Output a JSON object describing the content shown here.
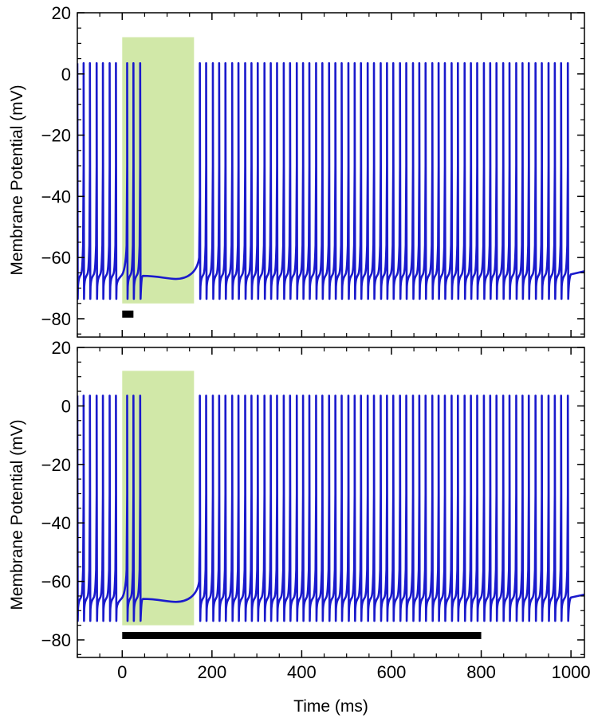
{
  "chart_data": {
    "type": "line",
    "xlabel": "Time (ms)",
    "ylabel": "Membrane Potential (mV)",
    "xlim": [
      -100,
      1030
    ],
    "ylim": [
      -86,
      20
    ],
    "x_ticks": [
      0,
      200,
      400,
      600,
      800,
      1000
    ],
    "y_ticks": [
      20,
      0,
      -20,
      -40,
      -60,
      -80
    ],
    "colors": {
      "trace": "#1a1acc",
      "shade": "#d1e8a8",
      "bar": "#000000"
    },
    "panels": [
      {
        "id": "top",
        "shaded_window": {
          "x": [
            0,
            160
          ],
          "y": [
            -75,
            12
          ]
        },
        "stimulus_bar": {
          "x": [
            0,
            25
          ],
          "y": -78.5
        },
        "spike_peak_mv": 3.5,
        "spike_trough_mv": -73.5,
        "resting_mv": -66,
        "silence_dip_mv": -67,
        "spike_times_ms": [
          -100,
          -86,
          -72,
          -57,
          -43,
          -28,
          -14,
          11,
          25,
          40,
          173,
          187,
          202,
          216,
          230,
          245,
          259,
          274,
          288,
          302,
          317,
          331,
          345,
          360,
          374,
          389,
          403,
          417,
          432,
          446,
          461,
          475,
          489,
          504,
          518,
          532,
          547,
          561,
          576,
          590,
          604,
          619,
          633,
          648,
          662,
          676,
          691,
          705,
          719,
          734,
          748,
          763,
          777,
          791,
          806,
          820,
          834,
          849,
          863,
          878,
          892,
          906,
          921,
          935,
          950,
          964,
          978,
          993
        ]
      },
      {
        "id": "bottom",
        "shaded_window": {
          "x": [
            0,
            160
          ],
          "y": [
            -75,
            12
          ]
        },
        "stimulus_bar": {
          "x": [
            0,
            800
          ],
          "y": -78.5
        },
        "spike_peak_mv": 3.5,
        "spike_trough_mv": -73.5,
        "resting_mv": -66,
        "silence_dip_mv": -67,
        "spike_times_ms": [
          -100,
          -86,
          -72,
          -57,
          -43,
          -28,
          -14,
          11,
          25,
          40,
          173,
          187,
          202,
          216,
          230,
          245,
          259,
          274,
          288,
          302,
          317,
          331,
          345,
          360,
          374,
          389,
          403,
          417,
          432,
          446,
          461,
          475,
          489,
          504,
          518,
          532,
          547,
          561,
          576,
          590,
          604,
          619,
          633,
          648,
          662,
          676,
          691,
          705,
          719,
          734,
          748,
          763,
          777,
          791,
          806,
          820,
          834,
          849,
          863,
          878,
          892,
          906,
          921,
          935,
          950,
          964,
          978,
          993
        ]
      }
    ]
  }
}
